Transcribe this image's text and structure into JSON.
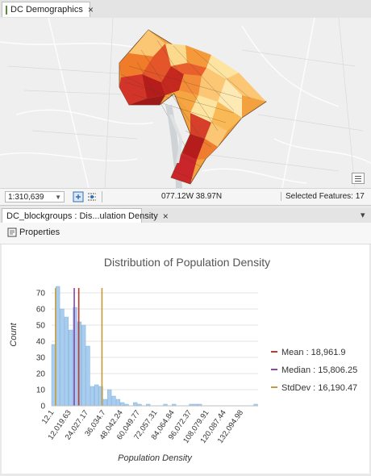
{
  "map_tab": {
    "title": "DC Demographics",
    "close_glyph": "×"
  },
  "statusbar": {
    "scale": "1:310,639",
    "coordinates": "077.12W 38.97N",
    "selected": "Selected Features: 17"
  },
  "chart_tab": {
    "title": "DC_blockgroups : Dis...ulation Density",
    "close_glyph": "×",
    "dropdown_glyph": "▾"
  },
  "toolbar": {
    "properties_label": "Properties"
  },
  "colors": {
    "bar": "#a9cdee",
    "mean": "#c0392b",
    "median": "#8e44ad",
    "stddev": "#c49a3a",
    "accent": "#2d6fb3"
  },
  "chart_data": {
    "type": "bar",
    "title": "Distribution of Population Density",
    "xlabel": "Population Density",
    "ylabel": "Count",
    "ylim": [
      0,
      75
    ],
    "yticks": [
      0,
      10,
      20,
      30,
      40,
      50,
      60,
      70
    ],
    "xticks": [
      "12.1",
      "12,019.63",
      "24,027.17",
      "36,034.7",
      "48,042.24",
      "60,049.77",
      "72,057.31",
      "84,064.84",
      "96,072.37",
      "108,079.91",
      "120,087.44",
      "132,094.98"
    ],
    "x_range": [
      12.1,
      144102.5
    ],
    "bins": [
      {
        "x0": 12.1,
        "x1": 3014,
        "count": 38
      },
      {
        "x0": 3014,
        "x1": 6016,
        "count": 74
      },
      {
        "x0": 6016,
        "x1": 9018,
        "count": 60
      },
      {
        "x0": 9018,
        "x1": 12020,
        "count": 55
      },
      {
        "x0": 12020,
        "x1": 15022,
        "count": 47
      },
      {
        "x0": 15022,
        "x1": 18024,
        "count": 61
      },
      {
        "x0": 18024,
        "x1": 21026,
        "count": 52
      },
      {
        "x0": 21026,
        "x1": 24027,
        "count": 50
      },
      {
        "x0": 24027,
        "x1": 27029,
        "count": 37
      },
      {
        "x0": 27029,
        "x1": 30031,
        "count": 12
      },
      {
        "x0": 30031,
        "x1": 33033,
        "count": 13
      },
      {
        "x0": 33033,
        "x1": 36035,
        "count": 12
      },
      {
        "x0": 36035,
        "x1": 39037,
        "count": 4
      },
      {
        "x0": 39037,
        "x1": 42039,
        "count": 10
      },
      {
        "x0": 42039,
        "x1": 45040,
        "count": 6
      },
      {
        "x0": 45040,
        "x1": 48042,
        "count": 4
      },
      {
        "x0": 48042,
        "x1": 51044,
        "count": 2
      },
      {
        "x0": 51044,
        "x1": 54046,
        "count": 1
      },
      {
        "x0": 57048,
        "x1": 60050,
        "count": 2
      },
      {
        "x0": 60050,
        "x1": 63052,
        "count": 1
      },
      {
        "x0": 66053,
        "x1": 69055,
        "count": 1
      },
      {
        "x0": 78059,
        "x1": 81061,
        "count": 1
      },
      {
        "x0": 84065,
        "x1": 87066,
        "count": 1
      },
      {
        "x0": 96072,
        "x1": 99074,
        "count": 1
      },
      {
        "x0": 99074,
        "x1": 102076,
        "count": 1
      },
      {
        "x0": 102076,
        "x1": 105078,
        "count": 1
      },
      {
        "x0": 141100,
        "x1": 144102,
        "count": 1
      }
    ],
    "reference_lines": [
      {
        "label": "Mean",
        "value": 18961.9,
        "display": "18,961.9",
        "color": "#c0392b"
      },
      {
        "label": "Median",
        "value": 15806.25,
        "display": "15,806.25",
        "color": "#8e44ad"
      },
      {
        "label": "StdDev",
        "value": 16190.47,
        "display": "16,190.47",
        "color": "#c49a3a",
        "positions": [
          2771.4,
          35152.4
        ]
      }
    ],
    "legend_position": "right",
    "grid": true
  }
}
